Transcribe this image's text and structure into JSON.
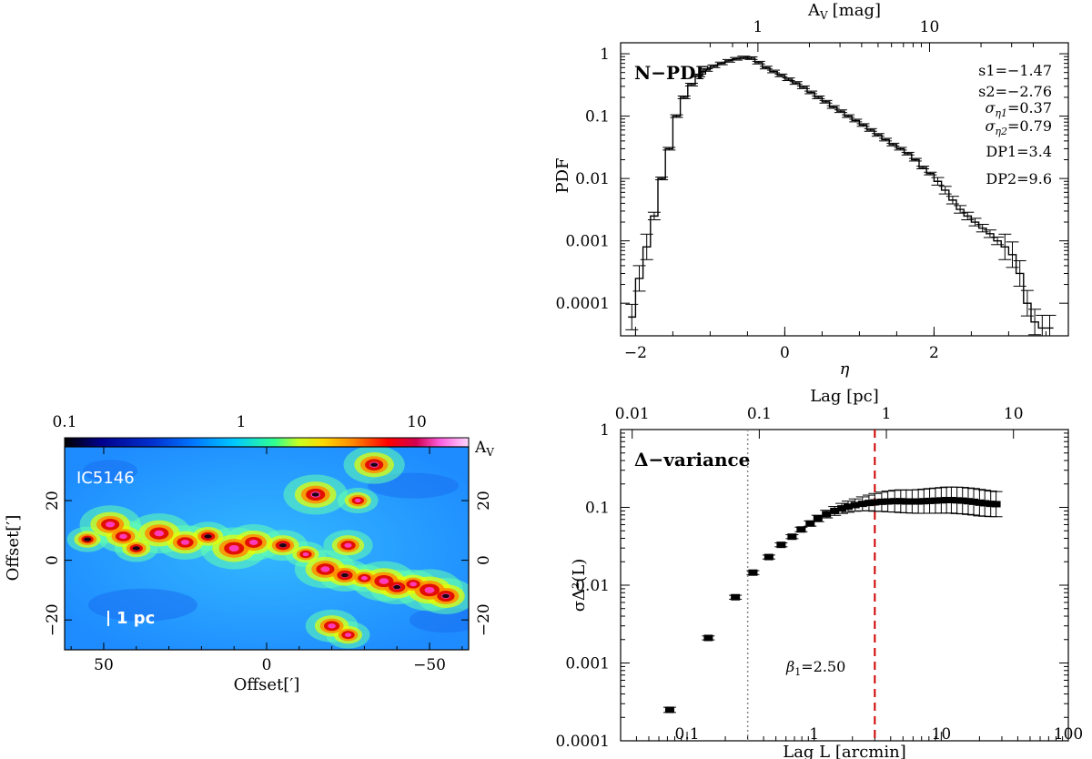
{
  "chart_data": [
    {
      "type": "heatmap",
      "title": "IC5146",
      "scale_label": "1 pc",
      "colorbar": {
        "label": "A",
        "label_sub": "V",
        "ticks": [
          "0.1",
          "1",
          "10"
        ],
        "range": [
          0.1,
          20
        ],
        "scale": "log"
      },
      "xlabel": "Offset[′]",
      "ylabel": "Offset[′]",
      "xlim": [
        62,
        -62
      ],
      "ylim": [
        -30,
        38
      ],
      "xticks": [
        "50",
        "0",
        "−50"
      ],
      "yticks": [
        "−20",
        "0",
        "20"
      ],
      "yticks_right": [
        "−20",
        "0",
        "20"
      ],
      "colors": [
        "#000000",
        "#0000b0",
        "#0050ff",
        "#00c8ff",
        "#60ffb0",
        "#e8ff00",
        "#ff8c00",
        "#e00000",
        "#ff40d0",
        "#ffd8ff"
      ],
      "filament_points": [
        [
          55,
          7
        ],
        [
          48,
          12
        ],
        [
          44,
          8
        ],
        [
          40,
          4
        ],
        [
          33,
          9
        ],
        [
          25,
          6
        ],
        [
          18,
          8
        ],
        [
          10,
          4
        ],
        [
          4,
          6
        ],
        [
          -5,
          5
        ],
        [
          -12,
          2
        ],
        [
          -18,
          -3
        ],
        [
          -24,
          -5
        ],
        [
          -30,
          -6
        ],
        [
          -36,
          -7
        ],
        [
          -40,
          -9
        ],
        [
          -45,
          -8
        ],
        [
          -50,
          -10
        ],
        [
          -55,
          -12
        ],
        [
          -25,
          5
        ],
        [
          -28,
          20
        ],
        [
          -33,
          32
        ],
        [
          -20,
          -22
        ],
        [
          -25,
          -25
        ],
        [
          -15,
          22
        ]
      ]
    },
    {
      "type": "line",
      "title": "N−PDF",
      "xlabel": "η",
      "ylabel": "PDF",
      "top_label": "A",
      "top_label_sub": "V",
      "top_label_unit": "[mag]",
      "top_ticks": [
        "1",
        "10"
      ],
      "top_tick_eta": [
        -0.36,
        1.94
      ],
      "xlim": [
        -2.2,
        3.8
      ],
      "ylim": [
        3e-05,
        1.5
      ],
      "yscale": "log",
      "xticks": [
        "−2",
        "0",
        "2"
      ],
      "yticks": [
        "0.0001",
        "0.001",
        "0.01",
        "0.1",
        "1"
      ],
      "stats": {
        "s1": "s1=−1.47",
        "s2": "s2=−2.76",
        "sig1_base": "σ",
        "sig1_sub": "η1",
        "sig1_val": "=0.37",
        "sig2_base": "σ",
        "sig2_sub": "η2",
        "sig2_val": "=0.79",
        "dp1": "DP1=3.4",
        "dp2": "DP2=9.6"
      },
      "eta": [
        -2.05,
        -1.95,
        -1.85,
        -1.75,
        -1.65,
        -1.55,
        -1.45,
        -1.35,
        -1.25,
        -1.15,
        -1.05,
        -0.95,
        -0.85,
        -0.75,
        -0.65,
        -0.55,
        -0.45,
        -0.35,
        -0.25,
        -0.15,
        -0.05,
        0.05,
        0.15,
        0.25,
        0.35,
        0.45,
        0.55,
        0.65,
        0.75,
        0.85,
        0.95,
        1.05,
        1.15,
        1.25,
        1.35,
        1.45,
        1.55,
        1.65,
        1.75,
        1.85,
        1.95,
        2.05,
        2.15,
        2.25,
        2.35,
        2.45,
        2.55,
        2.65,
        2.75,
        2.85,
        2.95,
        3.05,
        3.15,
        3.25,
        3.35,
        3.45,
        3.55
      ],
      "pdf": [
        6e-05,
        0.00025,
        0.0008,
        0.0025,
        0.01,
        0.03,
        0.1,
        0.2,
        0.32,
        0.45,
        0.55,
        0.63,
        0.7,
        0.77,
        0.83,
        0.87,
        0.85,
        0.72,
        0.6,
        0.52,
        0.45,
        0.39,
        0.34,
        0.29,
        0.24,
        0.2,
        0.17,
        0.14,
        0.12,
        0.1,
        0.085,
        0.072,
        0.06,
        0.05,
        0.042,
        0.035,
        0.03,
        0.025,
        0.02,
        0.015,
        0.012,
        0.009,
        0.0065,
        0.0045,
        0.0032,
        0.0025,
        0.002,
        0.0016,
        0.0013,
        0.001,
        0.0008,
        0.0006,
        0.0003,
        0.0001,
        5e-05,
        4e-05,
        4e-05
      ]
    },
    {
      "type": "scatter",
      "title": "Δ−variance",
      "xlabel": "Lag L [arcmin]",
      "top_label": "Lag [pc]",
      "ylabel_html": "σΔ²(L)",
      "xscale": "log",
      "yscale": "log",
      "xlim": [
        0.03,
        100
      ],
      "ylim": [
        0.0001,
        1
      ],
      "xticks": [
        "0.1",
        "1",
        "10",
        "100"
      ],
      "xtick_values": [
        0.1,
        1,
        10,
        100
      ],
      "top_ticks": [
        "0.01",
        "0.1",
        "1",
        "10"
      ],
      "top_tick_arcmin": [
        0.037,
        0.37,
        3.7,
        37
      ],
      "yticks": [
        "0.0001",
        "0.001",
        "0.01",
        "0.1",
        "1"
      ],
      "beta_label_base": "β",
      "beta_label_sub": "1",
      "beta_label_val": "=2.50",
      "vline_dotted": 0.3,
      "vline_dashed": 3.0,
      "points": [
        [
          0.073,
          0.00025
        ],
        [
          0.147,
          0.0021
        ],
        [
          0.24,
          0.007
        ],
        [
          0.33,
          0.0145
        ],
        [
          0.44,
          0.023
        ],
        [
          0.55,
          0.033
        ],
        [
          0.67,
          0.042
        ],
        [
          0.79,
          0.052
        ],
        [
          0.93,
          0.062
        ],
        [
          1.07,
          0.072
        ],
        [
          1.25,
          0.082
        ],
        [
          1.45,
          0.09
        ],
        [
          1.65,
          0.097
        ],
        [
          1.85,
          0.102
        ],
        [
          2.1,
          0.107
        ],
        [
          2.4,
          0.111
        ],
        [
          2.7,
          0.114
        ],
        [
          3.0,
          0.116
        ],
        [
          3.4,
          0.118
        ],
        [
          3.8,
          0.119
        ],
        [
          4.3,
          0.12
        ],
        [
          4.8,
          0.12
        ],
        [
          5.3,
          0.119
        ],
        [
          5.9,
          0.119
        ],
        [
          6.6,
          0.119
        ],
        [
          7.3,
          0.12
        ],
        [
          8.1,
          0.121
        ],
        [
          9.0,
          0.122
        ],
        [
          10.0,
          0.123
        ],
        [
          11.0,
          0.124
        ],
        [
          12.0,
          0.124
        ],
        [
          13.3,
          0.123
        ],
        [
          14.7,
          0.122
        ],
        [
          16.3,
          0.12
        ],
        [
          18.0,
          0.118
        ],
        [
          20.0,
          0.115
        ],
        [
          22.0,
          0.113
        ],
        [
          24.5,
          0.111
        ],
        [
          27.0,
          0.11
        ]
      ],
      "err_factor": [
        1.08,
        1.06,
        1.06,
        1.06,
        1.06,
        1.06,
        1.06,
        1.07,
        1.08,
        1.1,
        1.12,
        1.14,
        1.16,
        1.18,
        1.2,
        1.23,
        1.26,
        1.3,
        1.33,
        1.36,
        1.38,
        1.4,
        1.4,
        1.41,
        1.42,
        1.43,
        1.44,
        1.45,
        1.46,
        1.47,
        1.47,
        1.48,
        1.48,
        1.48,
        1.48,
        1.48,
        1.47,
        1.46,
        1.45
      ]
    }
  ]
}
